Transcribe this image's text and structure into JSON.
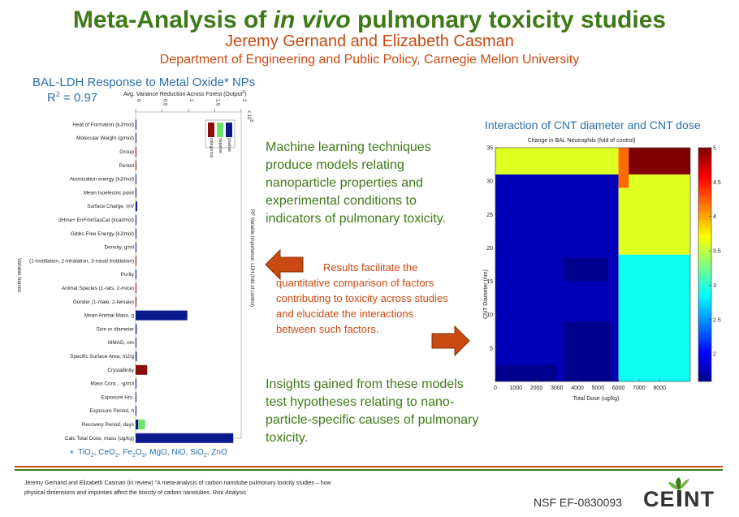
{
  "header": {
    "title_pre": "Meta-Analysis of ",
    "title_em": "in vivo",
    "title_post": " pulmonary toxicity studies",
    "authors": "Jeremy Gernand and Elizabeth Casman",
    "department": "Department of Engineering and Public Policy, Carnegie Mellon University"
  },
  "bar_panel": {
    "title": "BAL-LDH Response to Metal Oxide* NPs",
    "r2_label": "R",
    "r2_sup": "2",
    "r2_value": " = 0.97",
    "footnote_symbol": "*",
    "footnote_parts": [
      "TiO",
      "2",
      ", CeO",
      "2",
      ", Fe",
      "2",
      "O",
      "3",
      ", MgO, NiO, SiO",
      "2",
      ", ZnO"
    ]
  },
  "text": {
    "para1": "Machine learning techniques produce models relating nanoparticle properties and experimental conditions to indicators of pulmonary toxicity.",
    "results_first": "Results facilitate the",
    "results_rest": "quantitative comparison of factors contributing to toxicity across studies and elucidate the interactions between such factors.",
    "para3": "Insights gained from these models test hypotheses relating to nano-particle-specific causes of pulmonary toxicity."
  },
  "heatmap_panel": {
    "title": "Interaction of CNT diameter and CNT dose"
  },
  "footer": {
    "citation_line1": "Jeremy Gernand and Elizabeth Casman (in review) \"A meta-analysis of carbon nanotube pulmonary toxicity studies – how",
    "citation_line2": "physical dimensions and impurities affect the toxicity of carbon nanotubes.",
    "citation_journal": "Risk Analysis",
    "nsf": "NSF EF-0830093",
    "logo": "CEINT",
    "logo_icon": "leaf-icon"
  },
  "colors": {
    "green": "#3e7a17",
    "orange": "#c84a12",
    "blue": "#2c6fa8",
    "positive": "#0a1a8c",
    "negative": "#6fe36b",
    "categorical": "#8b0e0e"
  },
  "chart_data": [
    {
      "type": "bar",
      "title": "Avg. Variance Reduction Across Forest (Output",
      "title_sup": "2",
      "title_end": ")",
      "xlabel_right": "RF Variable Importance: LDH (fold of control)",
      "ylabel": "Variable Names",
      "xlim": [
        0,
        2
      ],
      "xticks": [
        0,
        0.5,
        1,
        1.5,
        2
      ],
      "xtick_labels": [
        "0",
        "0.5",
        "1",
        "1.5",
        "2"
      ],
      "exponent_label": "x 10",
      "exponent_sup": "5",
      "legend": [
        "positive",
        "negative",
        "categorical"
      ],
      "legend_placement": "top-right",
      "categories": [
        "Heat of Formation (kJ/mol)",
        "Molecular Weight (g/mol)",
        "Group",
        "Period",
        "Atomization energy (kJ/mol)",
        "Mean Isoelectric point",
        "Surface Charge, mV",
        "dHme+ EnFmrGasCat (kcal/mol)",
        "Gibbs Free Energy (kJ/mol)",
        "Density, g/ml",
        "(1-instillation, 2-inhalation, 3-nasal instillation)",
        "Purity",
        "Animal Species (1-rats, 2-mice)",
        "Gender (1-male, 2-female)",
        "Mean Animal Mass, g",
        "Size or diameter",
        "MMAD, nm",
        "Specific Surface Area, m2/g",
        "Crystallinity",
        "Mass Conc., -g/m3",
        "Exposure Hrs.",
        "Exposure Period, h",
        "Recovery Period, days",
        "Calc Total Dose, mass (ug/kg)"
      ],
      "values": [
        0.01,
        0.01,
        0.01,
        0.01,
        0.01,
        0.01,
        0.03,
        0.01,
        0.01,
        0.01,
        0.01,
        0.01,
        0.01,
        0.01,
        0.98,
        0.02,
        0.01,
        0.02,
        0.22,
        0.01,
        0.01,
        0.01,
        0.18,
        1.85
      ],
      "kind": [
        "positive",
        "positive",
        "categorical",
        "categorical",
        "positive",
        "positive",
        "positive",
        "positive",
        "positive",
        "positive",
        "categorical",
        "positive",
        "categorical",
        "categorical",
        "positive",
        "positive",
        "positive",
        "positive",
        "categorical",
        "positive",
        "positive",
        "positive",
        "negative",
        "positive"
      ]
    },
    {
      "type": "heatmap",
      "title": "Change in BAL Neutrophils (fold of control)",
      "xlabel": "Total Dose (ug/kg)",
      "ylabel": "CNT     Diameter (nm)",
      "xlim": [
        0,
        9500
      ],
      "ylim": [
        0,
        35
      ],
      "xticks": [
        0,
        1000,
        2000,
        3000,
        4000,
        5000,
        6000,
        7000,
        8000
      ],
      "yticks": [
        5,
        10,
        15,
        20,
        25,
        30,
        35
      ],
      "colorbar_ticks": [
        2,
        2.5,
        3,
        3.5,
        4,
        4.5,
        5
      ],
      "colorbar_range": [
        1.6,
        5
      ],
      "regions": [
        {
          "x": [
            0,
            6000
          ],
          "y": [
            0,
            31
          ],
          "value": 1.75
        },
        {
          "x": [
            6000,
            9500
          ],
          "y": [
            0,
            19
          ],
          "value": 2.9
        },
        {
          "x": [
            6000,
            9500
          ],
          "y": [
            19,
            31
          ],
          "value": 3.6
        },
        {
          "x": [
            0,
            6000
          ],
          "y": [
            31,
            35
          ],
          "value": 3.6
        },
        {
          "x": [
            6000,
            6500
          ],
          "y": [
            29,
            35
          ],
          "value": 4.2
        },
        {
          "x": [
            6500,
            9500
          ],
          "y": [
            31,
            35
          ],
          "value": 5.0
        },
        {
          "x": [
            3300,
            5500
          ],
          "y": [
            15,
            18.5
          ],
          "value": 1.55
        },
        {
          "x": [
            3300,
            5700
          ],
          "y": [
            0,
            9
          ],
          "value": 1.55
        },
        {
          "x": [
            0,
            3000
          ],
          "y": [
            0,
            2.5
          ],
          "value": 1.55
        }
      ]
    }
  ]
}
